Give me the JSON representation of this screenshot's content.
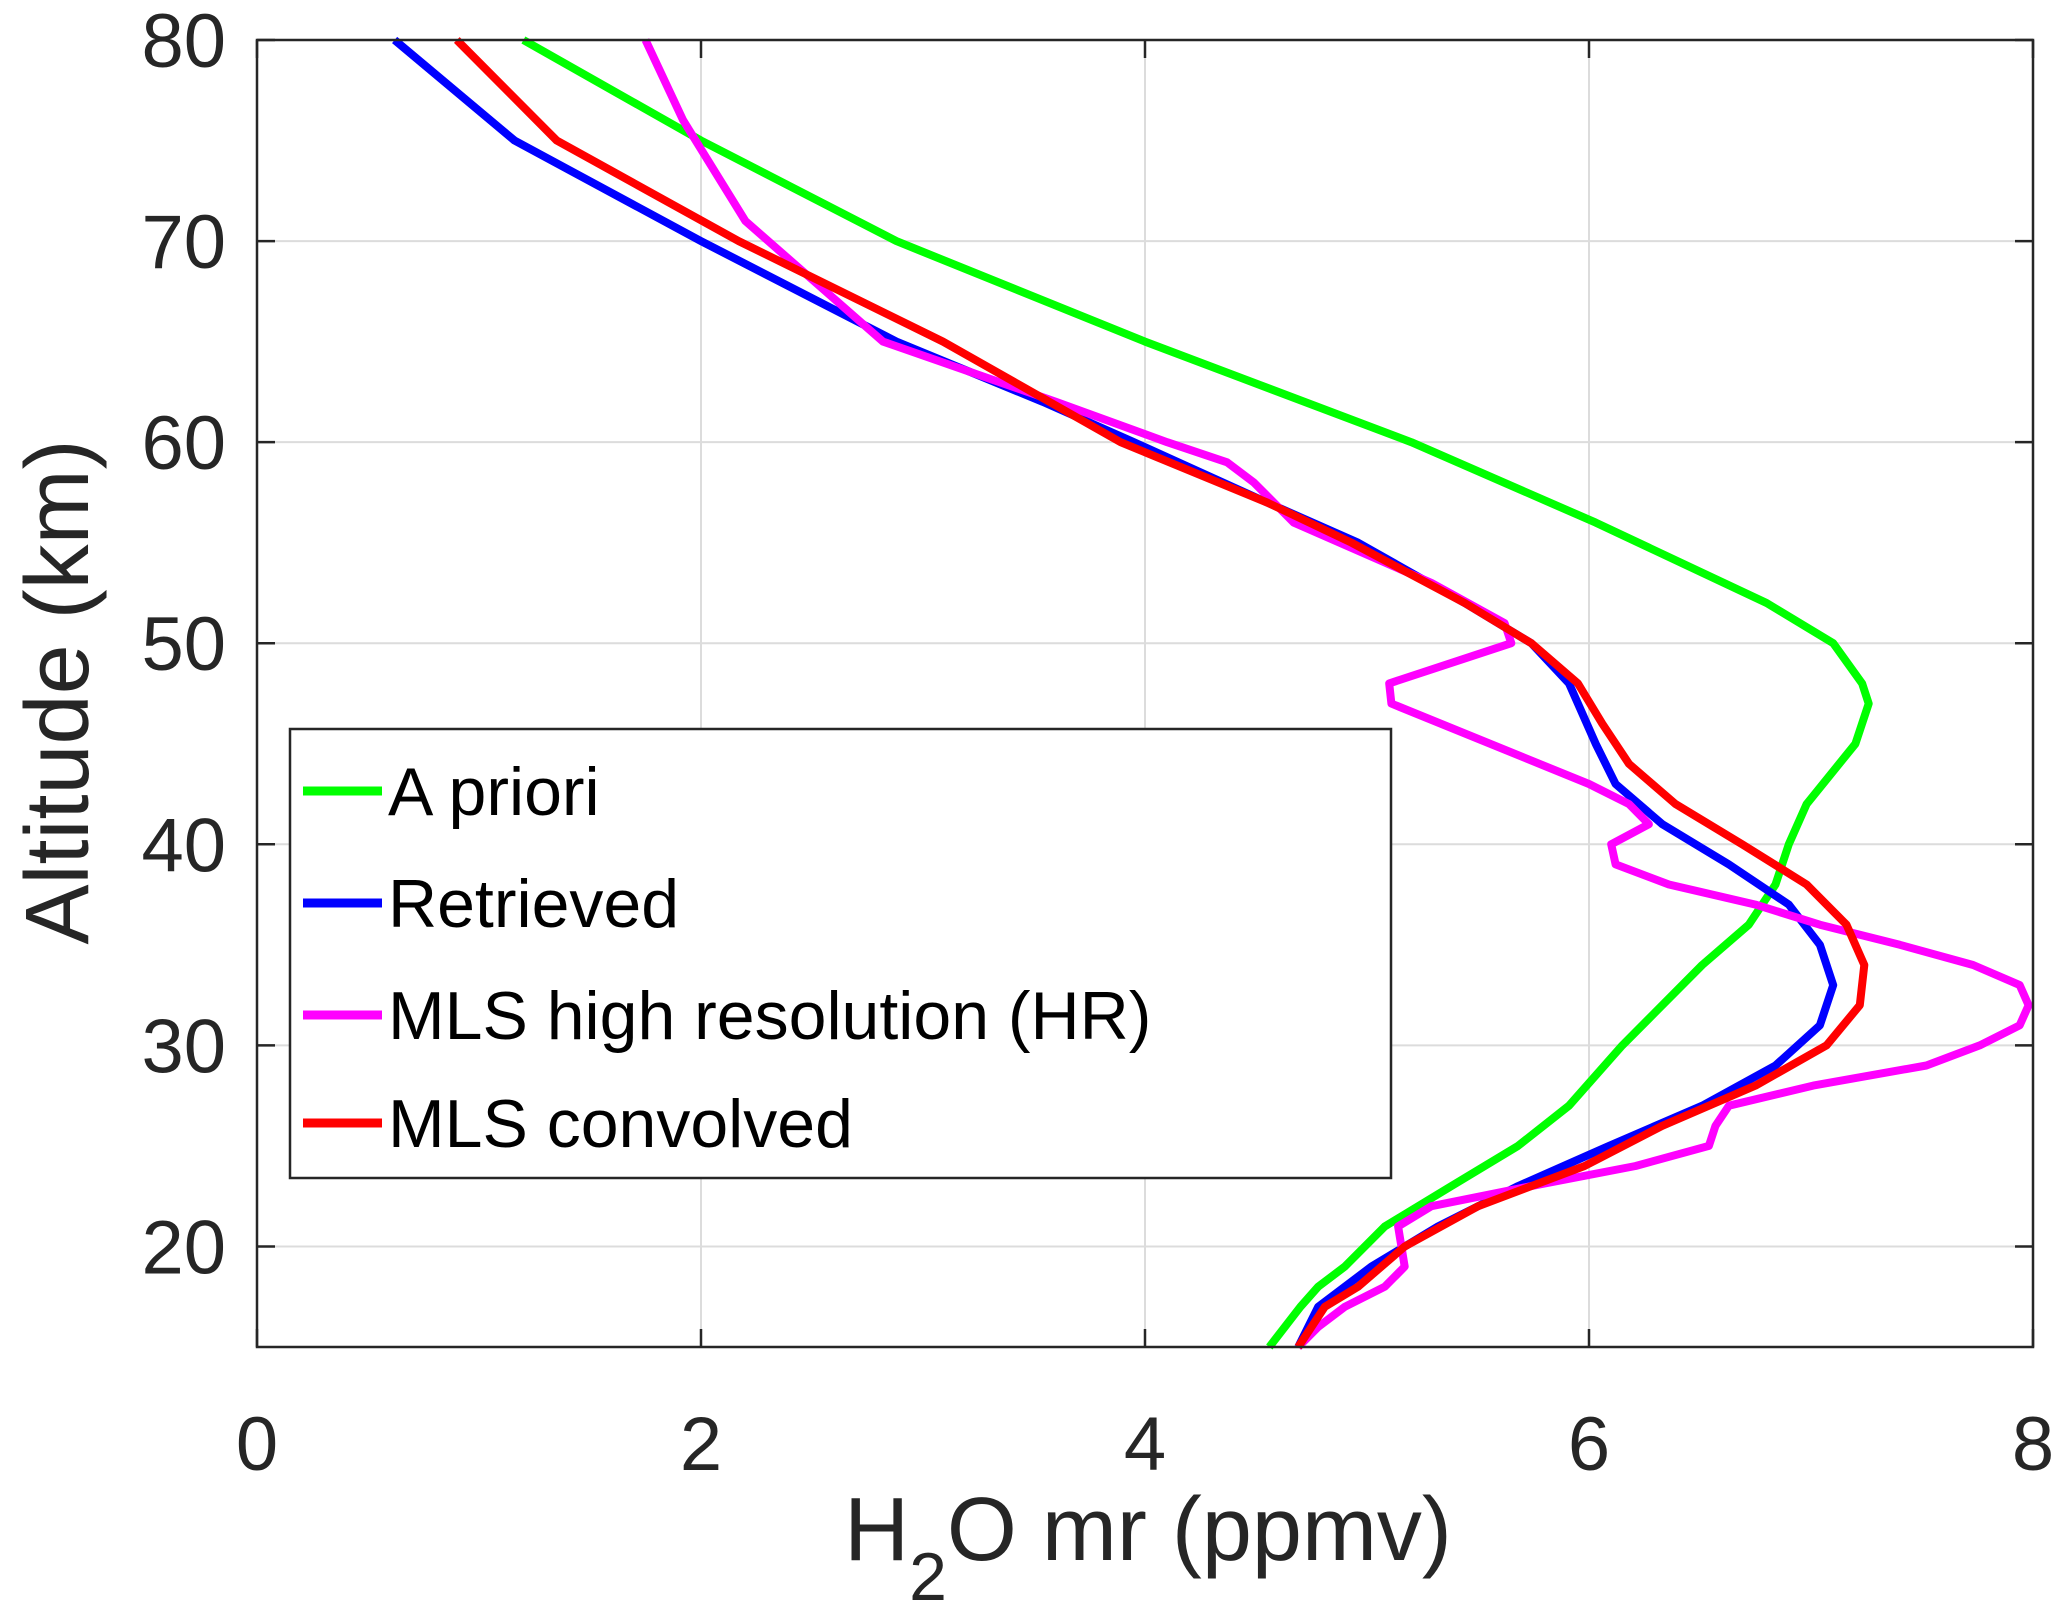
{
  "chart_data": {
    "type": "line",
    "title": "",
    "xlabel": "H2O mr (ppmv)",
    "xlabel_parts": {
      "pre": "H",
      "sub": "2",
      "post": "O mr (ppmv)"
    },
    "ylabel": "Altitude (km)",
    "xlim": [
      0,
      8
    ],
    "ylim": [
      15,
      80
    ],
    "xticks": [
      0,
      2,
      4,
      6,
      8
    ],
    "yticks": [
      20,
      30,
      40,
      50,
      60,
      70,
      80
    ],
    "grid": true,
    "legend_position": "center-left",
    "series": [
      {
        "name": "A priori",
        "color": "#00ff00",
        "x": [
          1.2,
          2.0,
          2.88,
          4.0,
          5.2,
          6.03,
          6.8,
          7.1,
          7.23,
          7.26,
          7.2,
          6.98,
          6.9,
          6.84,
          6.72,
          6.51,
          6.15,
          5.91,
          5.68,
          5.38,
          5.08,
          4.9,
          4.78,
          4.7,
          4.56
        ],
        "y": [
          80,
          75,
          70,
          65,
          60,
          56,
          52,
          50,
          48,
          47,
          45,
          42,
          40,
          38,
          36,
          34,
          30,
          27,
          25,
          23,
          21,
          19,
          18,
          17,
          15
        ]
      },
      {
        "name": "Retrieved",
        "color": "#0000ff",
        "x": [
          0.62,
          1.16,
          2.0,
          2.88,
          3.54,
          3.95,
          4.55,
          4.96,
          5.44,
          5.74,
          5.91,
          6.03,
          6.12,
          6.33,
          6.63,
          6.9,
          7.04,
          7.1,
          7.04,
          6.84,
          6.51,
          6.09,
          5.68,
          5.32,
          5.02,
          4.78,
          4.69
        ],
        "y": [
          80,
          75,
          70,
          65,
          62,
          60,
          57,
          55,
          52,
          50,
          48,
          45,
          43,
          41,
          39,
          37,
          35,
          33,
          31,
          29,
          27,
          25,
          23,
          21,
          19,
          17,
          15
        ]
      },
      {
        "name": "MLS high resolution (HR)",
        "color": "#ff00ff",
        "x": [
          1.75,
          1.92,
          2.2,
          2.82,
          3.6,
          4.1,
          4.37,
          4.49,
          4.67,
          5.29,
          5.62,
          5.65,
          5.1,
          5.11,
          6.0,
          6.18,
          6.27,
          6.1,
          6.12,
          6.36,
          6.75,
          7.04,
          7.4,
          7.73,
          7.94,
          7.98,
          7.94,
          7.76,
          7.52,
          7.01,
          6.63,
          6.57,
          6.54,
          6.21,
          5.74,
          5.29,
          5.14,
          5.17,
          5.08,
          4.9,
          4.78,
          4.69
        ],
        "y": [
          80,
          76,
          71,
          65,
          62,
          60,
          59,
          58,
          56,
          53,
          51,
          50,
          48,
          47,
          43,
          42,
          41,
          40,
          39,
          38,
          37,
          36,
          35,
          34,
          33,
          32,
          31,
          30,
          29,
          28,
          27,
          26,
          25,
          24,
          23,
          22,
          21,
          19,
          18,
          17,
          16,
          15
        ]
      },
      {
        "name": "MLS convolved",
        "color": "#ff0000",
        "x": [
          0.9,
          1.35,
          2.17,
          3.09,
          3.89,
          4.55,
          4.93,
          5.44,
          5.74,
          5.95,
          6.06,
          6.18,
          6.39,
          6.69,
          6.98,
          7.16,
          7.24,
          7.22,
          7.07,
          6.75,
          6.33,
          5.98,
          5.5,
          5.17,
          4.96,
          4.81,
          4.69
        ],
        "y": [
          80,
          75,
          70,
          65,
          60,
          57,
          55,
          52,
          50,
          48,
          46,
          44,
          42,
          40,
          38,
          36,
          34,
          32,
          30,
          28,
          26,
          24,
          22,
          20,
          18,
          17,
          15
        ]
      }
    ]
  }
}
